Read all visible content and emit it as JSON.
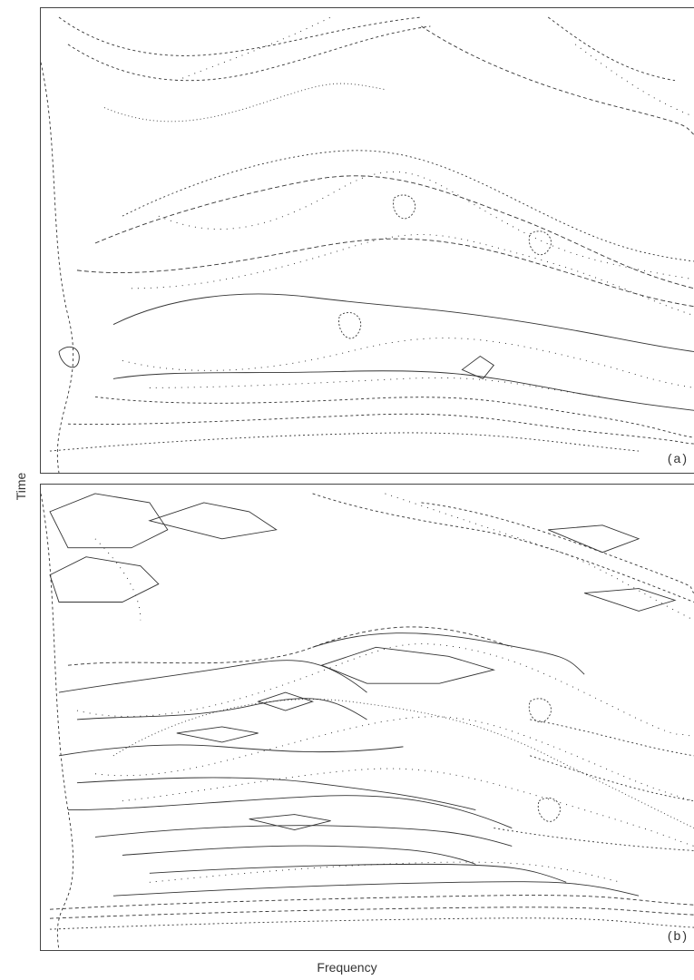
{
  "figure": {
    "xlabel": "Frequency",
    "ylabel": "Time",
    "panels": [
      {
        "label": "(a)"
      },
      {
        "label": "(b)"
      }
    ]
  }
}
